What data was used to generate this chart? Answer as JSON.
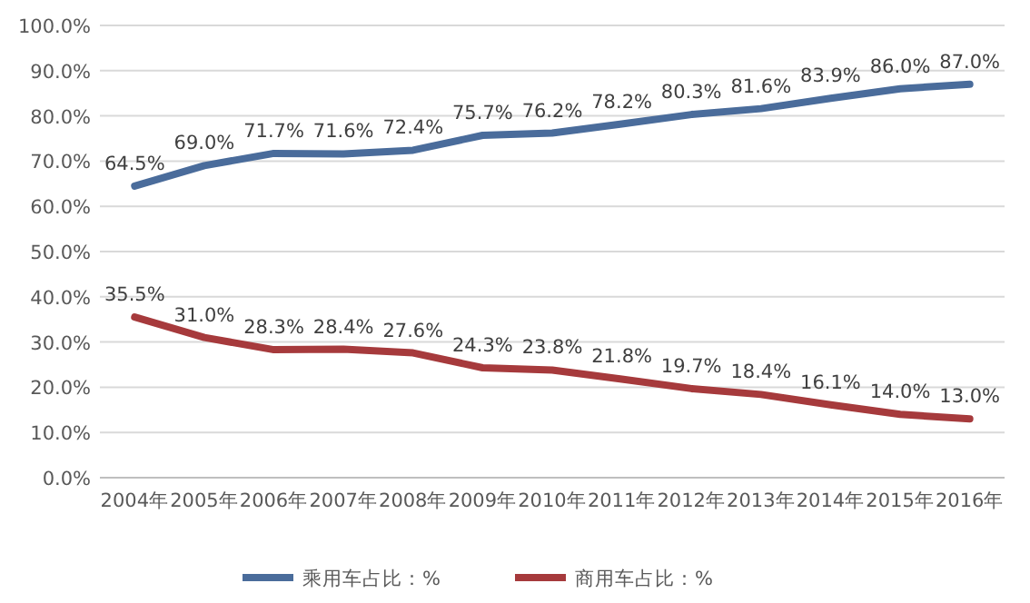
{
  "chart_data": {
    "type": "line",
    "categories": [
      "2004年",
      "2005年",
      "2006年",
      "2007年",
      "2008年",
      "2009年",
      "2010年",
      "2011年",
      "2012年",
      "2013年",
      "2014年",
      "2015年",
      "2016年"
    ],
    "series": [
      {
        "name": "乘用车占比：%",
        "color": "#4a6c9b",
        "values": [
          64.5,
          69.0,
          71.7,
          71.6,
          72.4,
          75.7,
          76.2,
          78.2,
          80.3,
          81.6,
          83.9,
          86.0,
          87.0
        ],
        "value_labels": [
          "64.5%",
          "69.0%",
          "71.7%",
          "71.6%",
          "72.4%",
          "75.7%",
          "76.2%",
          "78.2%",
          "80.3%",
          "81.6%",
          "83.9%",
          "86.0%",
          "87.0%"
        ]
      },
      {
        "name": "商用车占比：%",
        "color": "#a63a3c",
        "values": [
          35.5,
          31.0,
          28.3,
          28.4,
          27.6,
          24.3,
          23.8,
          21.8,
          19.7,
          18.4,
          16.1,
          14.0,
          13.0
        ],
        "value_labels": [
          "35.5%",
          "31.0%",
          "28.3%",
          "28.4%",
          "27.6%",
          "24.3%",
          "23.8%",
          "21.8%",
          "19.7%",
          "18.4%",
          "16.1%",
          "14.0%",
          "13.0%"
        ]
      }
    ],
    "ylim": [
      0,
      100
    ],
    "yticks": [
      {
        "value": 0,
        "label": "0.0%"
      },
      {
        "value": 10,
        "label": "10.0%"
      },
      {
        "value": 20,
        "label": "20.0%"
      },
      {
        "value": 30,
        "label": "30.0%"
      },
      {
        "value": 40,
        "label": "40.0%"
      },
      {
        "value": 50,
        "label": "50.0%"
      },
      {
        "value": 60,
        "label": "60.0%"
      },
      {
        "value": 70,
        "label": "70.0%"
      },
      {
        "value": 80,
        "label": "80.0%"
      },
      {
        "value": 90,
        "label": "90.0%"
      },
      {
        "value": 100,
        "label": "100.0%"
      }
    ],
    "grid": "y",
    "legend": "bottom",
    "marker": "none",
    "line_style": "solid"
  }
}
